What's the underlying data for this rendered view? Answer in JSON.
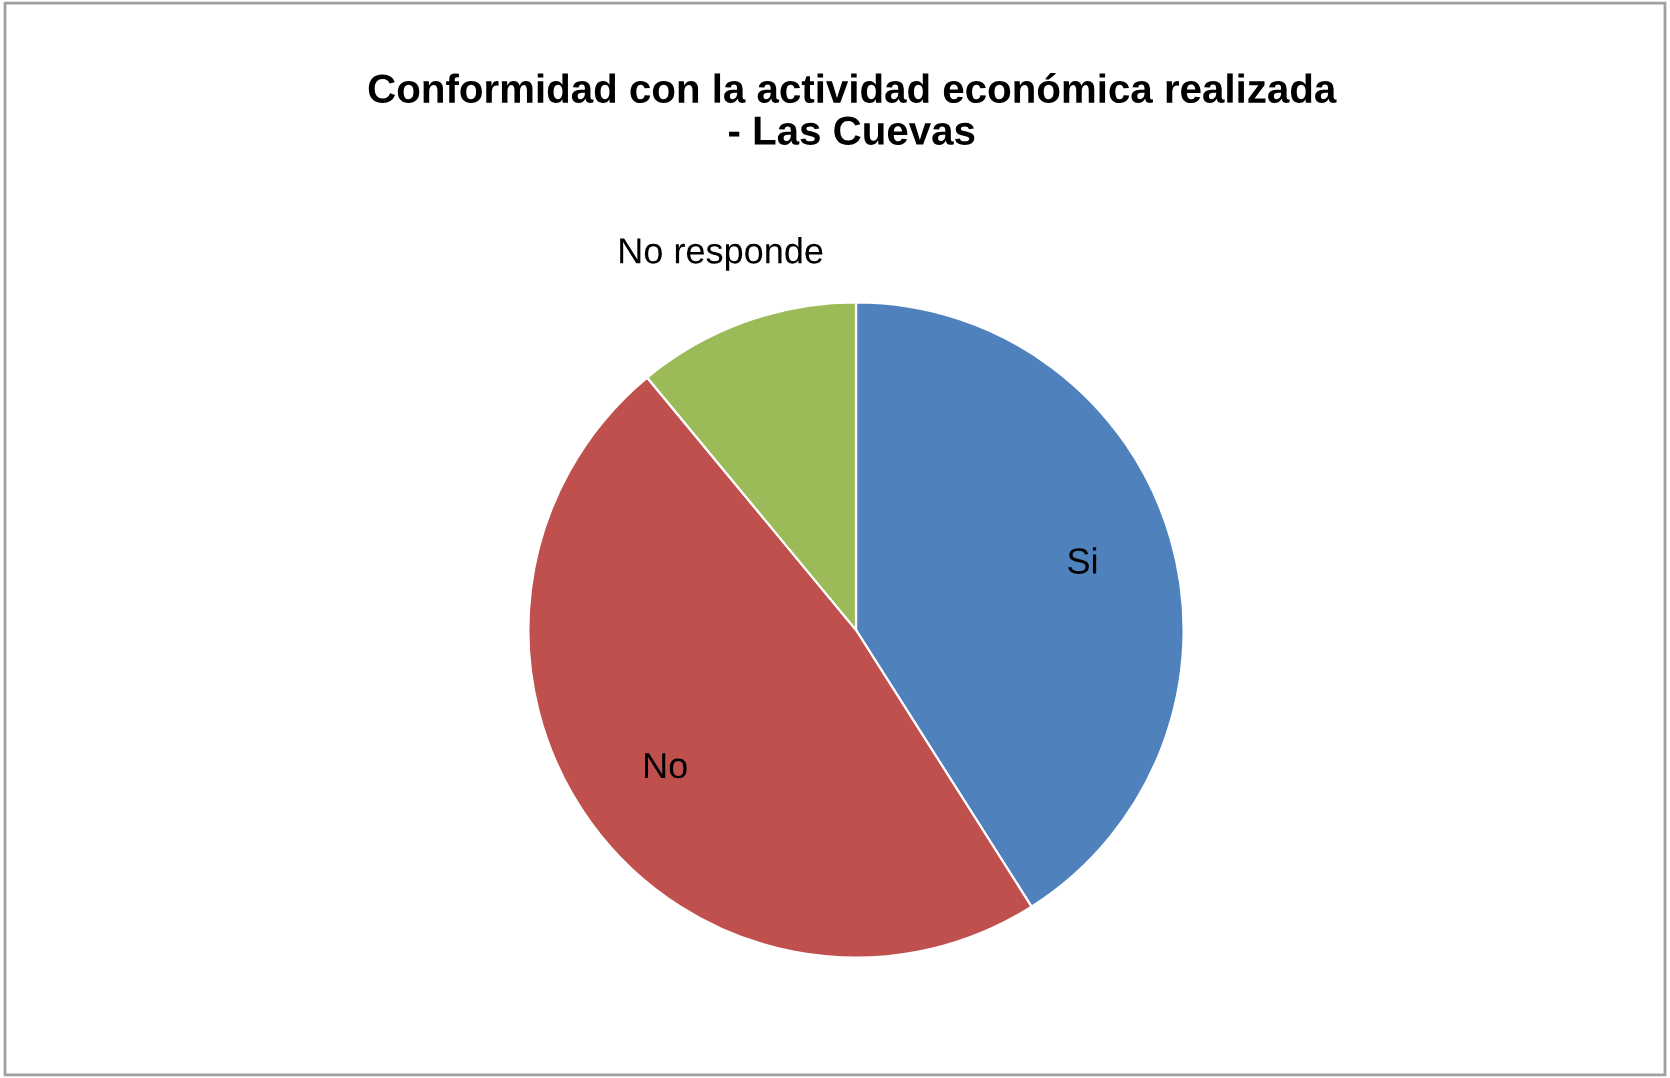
{
  "chart_data": {
    "type": "pie",
    "title": "Conformidad con la actividad económica realizada\n- Las Cuevas",
    "categories": [
      "Si",
      "No",
      "No responde"
    ],
    "values": [
      41,
      48,
      11
    ],
    "colors": [
      "#4f81bd",
      "#c0504d",
      "#9bbb59"
    ]
  }
}
